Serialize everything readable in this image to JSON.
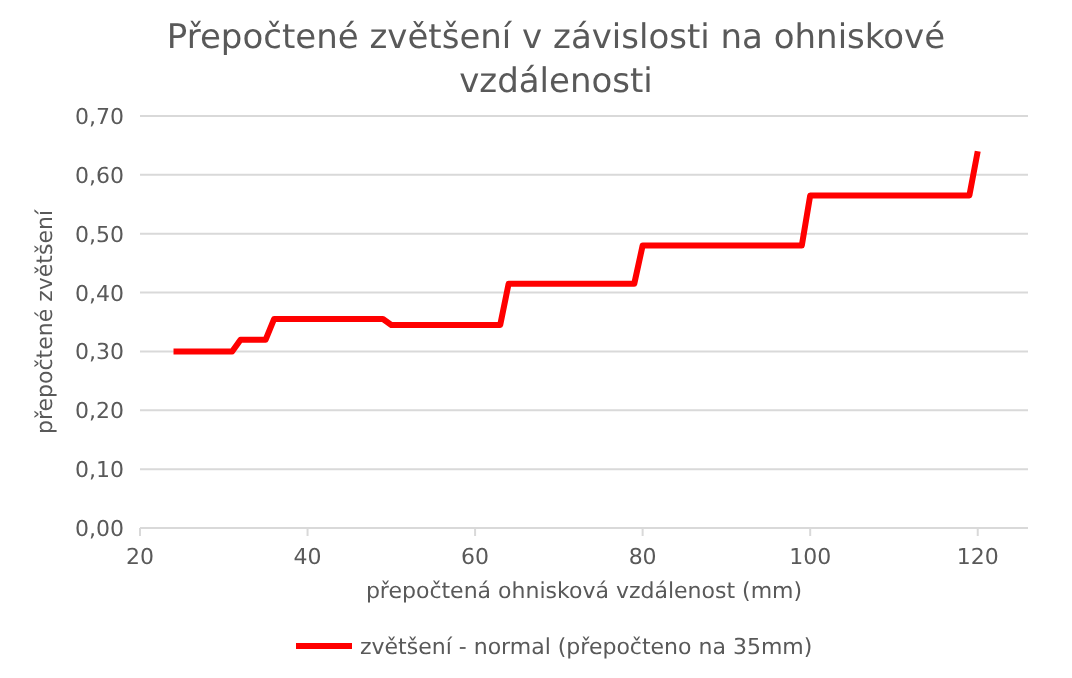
{
  "chart_data": {
    "type": "line",
    "title": "Přepočtené zvětšení v závislosti na ohniskové vzdálenosti",
    "xlabel": "přepočtená ohnisková vzdálenost (mm)",
    "ylabel": "přepočtené zvětšení",
    "x": [
      24,
      31,
      32,
      35,
      36,
      49,
      50,
      63,
      64,
      79,
      80,
      99,
      100,
      119,
      120
    ],
    "series": [
      {
        "name": "zvětšení - normal (přepočteno na 35mm)",
        "color": "#ff0000",
        "values": [
          0.3,
          0.3,
          0.32,
          0.32,
          0.355,
          0.355,
          0.345,
          0.345,
          0.415,
          0.415,
          0.48,
          0.48,
          0.565,
          0.565,
          0.64
        ]
      }
    ],
    "xlim": [
      20,
      126
    ],
    "xticks": [
      20,
      40,
      60,
      80,
      100,
      120
    ],
    "ylim": [
      0,
      0.7
    ],
    "yticks": [
      {
        "value": 0,
        "label": "0,00"
      },
      {
        "value": 0.1,
        "label": "0,10"
      },
      {
        "value": 0.2,
        "label": "0,20"
      },
      {
        "value": 0.3,
        "label": "0,30"
      },
      {
        "value": 0.4,
        "label": "0,40"
      },
      {
        "value": 0.5,
        "label": "0,50"
      },
      {
        "value": 0.6,
        "label": "0,60"
      },
      {
        "value": 0.7,
        "label": "0,70"
      }
    ],
    "grid": "y",
    "legend": "bottom",
    "marker": "none",
    "line_style": "solid"
  }
}
